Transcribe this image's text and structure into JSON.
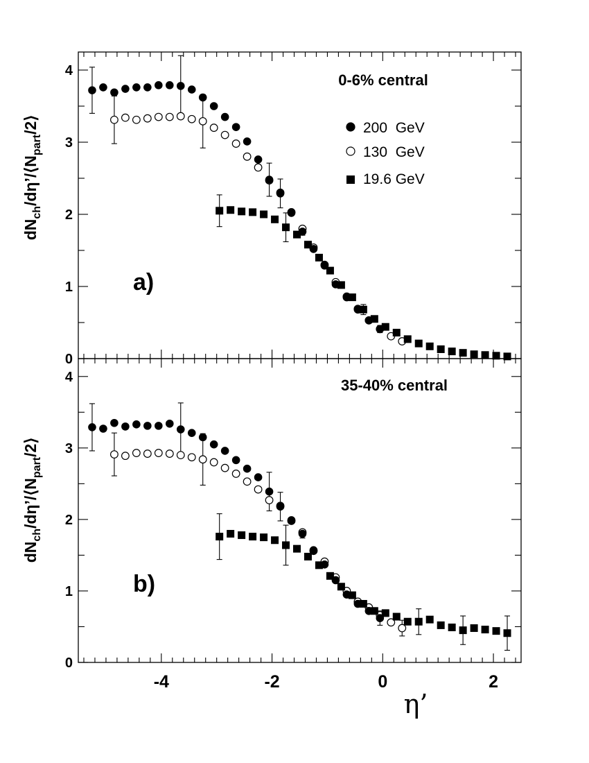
{
  "figure": {
    "xlabel": "η’",
    "xticks": [
      "-4",
      "-2",
      "0",
      "2"
    ],
    "legend": [
      {
        "label": "200  GeV",
        "marker": "filled-circle"
      },
      {
        "label": "130  GeV",
        "marker": "open-circle"
      },
      {
        "label": "19.6 GeV",
        "marker": "filled-square"
      }
    ]
  },
  "chart_data": [
    {
      "type": "scatter",
      "panel": "a)",
      "annotation": "0-6% central",
      "ylabel": "dNch/dη’/⟨Npart/2⟩",
      "ylim": [
        0,
        4.25
      ],
      "xlim": [
        -5.5,
        2.5
      ],
      "yticks": [
        "0",
        "1",
        "2",
        "3",
        "4"
      ],
      "legend_position": "top-right",
      "series": [
        {
          "name": "200  GeV",
          "marker": "filled-circle",
          "x": [
            -5.25,
            -5.05,
            -4.85,
            -4.65,
            -4.45,
            -4.25,
            -4.05,
            -3.85,
            -3.65,
            -3.45,
            -3.25,
            -3.05,
            -2.85,
            -2.65,
            -2.45,
            -2.25,
            -2.05,
            -1.85,
            -1.65,
            -1.45,
            -1.25,
            -1.05,
            -0.85,
            -0.65,
            -0.45,
            -0.25,
            -0.05
          ],
          "y": [
            3.72,
            3.76,
            3.69,
            3.74,
            3.76,
            3.76,
            3.79,
            3.79,
            3.78,
            3.73,
            3.62,
            3.5,
            3.35,
            3.21,
            3.01,
            2.76,
            2.48,
            2.29,
            2.02,
            1.76,
            1.52,
            1.29,
            1.03,
            0.85,
            0.68,
            0.53,
            0.41
          ]
        },
        {
          "name": "130  GeV",
          "marker": "open-circle",
          "x": [
            -4.85,
            -4.65,
            -4.45,
            -4.25,
            -4.05,
            -3.85,
            -3.65,
            -3.45,
            -3.25,
            -3.05,
            -2.85,
            -2.65,
            -2.45,
            -2.25,
            -2.05,
            -1.85,
            -1.65,
            -1.45,
            -1.25,
            -1.05,
            -0.85,
            -0.65,
            -0.45,
            -0.25,
            -0.05,
            0.15,
            0.35
          ],
          "y": [
            3.31,
            3.34,
            3.31,
            3.33,
            3.35,
            3.35,
            3.36,
            3.32,
            3.29,
            3.2,
            3.1,
            2.98,
            2.8,
            2.65,
            2.47,
            2.3,
            2.03,
            1.8,
            1.54,
            1.3,
            1.06,
            0.86,
            0.69,
            0.53,
            0.41,
            0.31,
            0.24
          ]
        },
        {
          "name": "19.6 GeV",
          "marker": "filled-square",
          "x": [
            -2.95,
            -2.75,
            -2.55,
            -2.35,
            -2.15,
            -1.95,
            -1.75,
            -1.55,
            -1.35,
            -1.15,
            -0.95,
            -0.75,
            -0.55,
            -0.35,
            -0.15,
            0.05,
            0.25,
            0.45,
            0.65,
            0.85,
            1.05,
            1.25,
            1.45,
            1.65,
            1.85,
            2.05,
            2.25
          ],
          "y": [
            2.05,
            2.06,
            2.04,
            2.03,
            2.0,
            1.93,
            1.82,
            1.72,
            1.58,
            1.4,
            1.22,
            1.02,
            0.85,
            0.68,
            0.55,
            0.44,
            0.36,
            0.27,
            0.21,
            0.17,
            0.13,
            0.1,
            0.08,
            0.06,
            0.05,
            0.04,
            0.03
          ]
        }
      ],
      "error_bars": [
        {
          "x": -5.25,
          "y": 3.72,
          "err": 0.32
        },
        {
          "x": -4.85,
          "y": 3.31,
          "err": 0.33
        },
        {
          "x": -3.65,
          "y": 3.78,
          "err": 0.42
        },
        {
          "x": -3.25,
          "y": 3.29,
          "err": 0.37
        },
        {
          "x": -2.05,
          "y": 2.48,
          "err": 0.23
        },
        {
          "x": -1.85,
          "y": 2.29,
          "err": 0.2
        },
        {
          "x": -2.95,
          "y": 2.05,
          "err": 0.22
        },
        {
          "x": -1.75,
          "y": 1.82,
          "err": 0.2
        },
        {
          "x": -1.45,
          "y": 1.76,
          "err": 0.05
        },
        {
          "x": -0.35,
          "y": 0.68,
          "err": 0.07
        },
        {
          "x": -0.05,
          "y": 0.41,
          "err": 0.05
        }
      ]
    },
    {
      "type": "scatter",
      "panel": "b)",
      "annotation": "35-40% central",
      "ylabel": "dNch/dη’/⟨Npart/2⟩",
      "ylim": [
        0,
        4.25
      ],
      "xlim": [
        -5.5,
        2.5
      ],
      "yticks": [
        "0",
        "1",
        "2",
        "3",
        "4"
      ],
      "series": [
        {
          "name": "200  GeV",
          "marker": "filled-circle",
          "x": [
            -5.25,
            -5.05,
            -4.85,
            -4.65,
            -4.45,
            -4.25,
            -4.05,
            -3.85,
            -3.65,
            -3.45,
            -3.25,
            -3.05,
            -2.85,
            -2.65,
            -2.45,
            -2.25,
            -2.05,
            -1.85,
            -1.65,
            -1.45,
            -1.25,
            -1.05,
            -0.85,
            -0.65,
            -0.45,
            -0.25,
            -0.05
          ],
          "y": [
            3.29,
            3.27,
            3.35,
            3.3,
            3.33,
            3.31,
            3.31,
            3.34,
            3.26,
            3.21,
            3.15,
            3.05,
            2.96,
            2.83,
            2.71,
            2.59,
            2.39,
            2.18,
            1.99,
            1.8,
            1.57,
            1.37,
            1.15,
            0.95,
            0.82,
            0.72,
            0.62
          ]
        },
        {
          "name": "130  GeV",
          "marker": "open-circle",
          "x": [
            -4.85,
            -4.65,
            -4.45,
            -4.25,
            -4.05,
            -3.85,
            -3.65,
            -3.45,
            -3.25,
            -3.05,
            -2.85,
            -2.65,
            -2.45,
            -2.25,
            -2.05,
            -1.85,
            -1.65,
            -1.45,
            -1.25,
            -1.05,
            -0.85,
            -0.65,
            -0.45,
            -0.25,
            -0.05,
            0.15,
            0.35
          ],
          "y": [
            2.91,
            2.89,
            2.93,
            2.92,
            2.93,
            2.92,
            2.9,
            2.87,
            2.84,
            2.8,
            2.72,
            2.64,
            2.53,
            2.42,
            2.27,
            2.19,
            1.98,
            1.82,
            1.56,
            1.41,
            1.19,
            1.0,
            0.85,
            0.77,
            0.66,
            0.56,
            0.48
          ]
        },
        {
          "name": "19.6 GeV",
          "marker": "filled-square",
          "x": [
            -2.95,
            -2.75,
            -2.55,
            -2.35,
            -2.15,
            -1.95,
            -1.75,
            -1.55,
            -1.35,
            -1.15,
            -0.95,
            -0.75,
            -0.55,
            -0.35,
            -0.15,
            0.05,
            0.25,
            0.45,
            0.65,
            0.85,
            1.05,
            1.25,
            1.45,
            1.65,
            1.85,
            2.05,
            2.25
          ],
          "y": [
            1.76,
            1.8,
            1.78,
            1.76,
            1.75,
            1.71,
            1.64,
            1.59,
            1.48,
            1.36,
            1.21,
            1.06,
            0.94,
            0.82,
            0.72,
            0.69,
            0.64,
            0.57,
            0.57,
            0.6,
            0.52,
            0.49,
            0.45,
            0.48,
            0.46,
            0.44,
            0.41
          ]
        }
      ],
      "error_bars": [
        {
          "x": -5.25,
          "y": 3.29,
          "err": 0.33
        },
        {
          "x": -4.85,
          "y": 2.91,
          "err": 0.3
        },
        {
          "x": -3.65,
          "y": 3.26,
          "err": 0.37
        },
        {
          "x": -3.25,
          "y": 2.84,
          "err": 0.36
        },
        {
          "x": -2.05,
          "y": 2.39,
          "err": 0.27
        },
        {
          "x": -1.85,
          "y": 2.18,
          "err": 0.2
        },
        {
          "x": -2.95,
          "y": 1.76,
          "err": 0.32
        },
        {
          "x": -1.75,
          "y": 1.64,
          "err": 0.28
        },
        {
          "x": -1.45,
          "y": 1.8,
          "err": 0.06
        },
        {
          "x": -0.05,
          "y": 0.62,
          "err": 0.1
        },
        {
          "x": 0.35,
          "y": 0.48,
          "err": 0.11
        },
        {
          "x": 0.65,
          "y": 0.57,
          "err": 0.18
        },
        {
          "x": 1.45,
          "y": 0.45,
          "err": 0.2
        },
        {
          "x": 2.25,
          "y": 0.41,
          "err": 0.24
        }
      ]
    }
  ]
}
